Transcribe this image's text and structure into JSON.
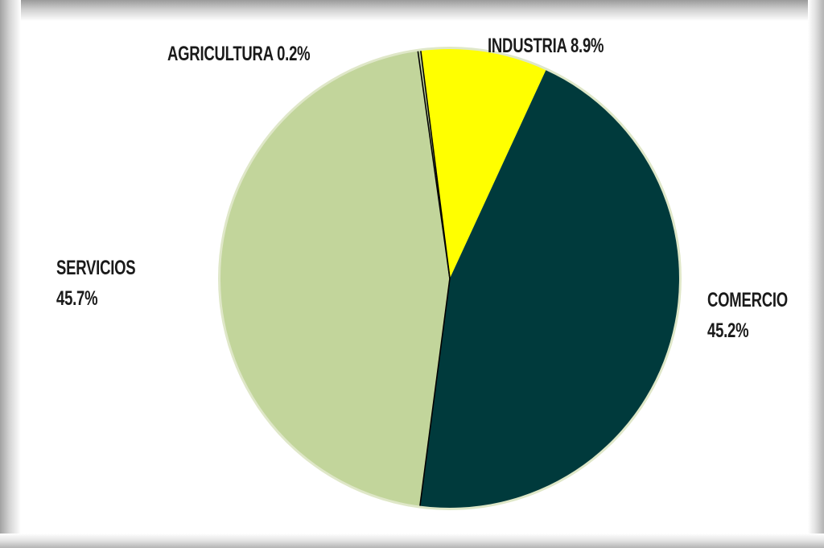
{
  "chart_data": {
    "type": "pie",
    "title": "",
    "slices": [
      {
        "label": "AGRICULTURA",
        "value": 0.2,
        "value_label": "0.2%",
        "color": "#c2d59b"
      },
      {
        "label": "INDUSTRIA",
        "value": 8.9,
        "value_label": "8.9%",
        "color": "#ffff00"
      },
      {
        "label": "COMERCIO",
        "value": 45.2,
        "value_label": "45.2%",
        "color": "#003a3c"
      },
      {
        "label": "SERVICIOS",
        "value": 45.7,
        "value_label": "45.7%",
        "color": "#c2d59b"
      }
    ],
    "start_angle_deg": -8,
    "direction": "clockwise",
    "legend": "none",
    "separator_color": "#000000",
    "rim_color": "#dfe7c8"
  }
}
